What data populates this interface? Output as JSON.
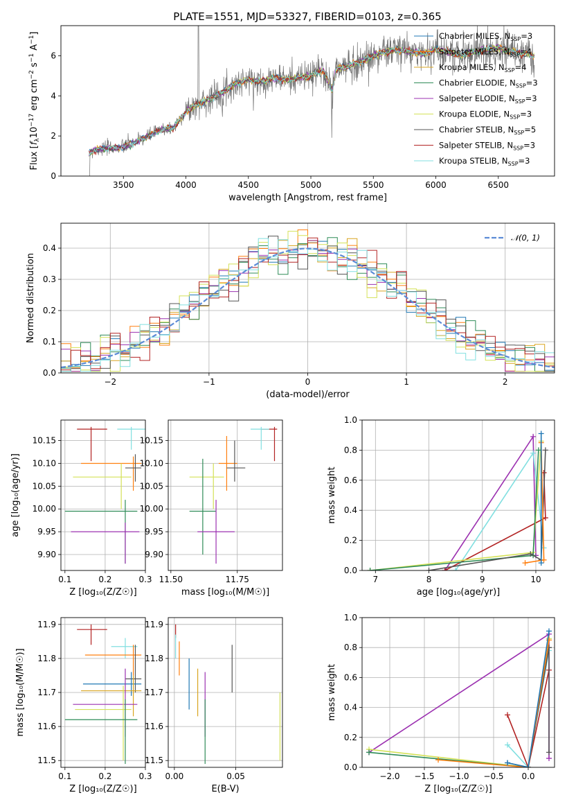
{
  "title": "PLATE=1551, MJD=53327, FIBERID=0103, z=0.365",
  "colors": {
    "chabrier_miles": "#1f77b4",
    "salpeter_miles": "#ff7f0e",
    "kroupa_miles": "#d9a520",
    "chabrier_elodie": "#2e8b57",
    "salpeter_elodie": "#9b30b0",
    "kroupa_elodie": "#d4e157",
    "chabrier_stelib": "#555555",
    "salpeter_stelib": "#b22222",
    "kroupa_stelib": "#80dfe0",
    "spectrum": "#707070",
    "gaussian": "#5b8bd6"
  },
  "chart_data": [
    {
      "type": "line",
      "title": "PLATE=1551, MJD=53327, FIBERID=0103, z=0.365",
      "xlabel": "wavelength [Angstrom, rest frame]",
      "ylabel_parts": [
        "Flux [",
        "f",
        "λ",
        "10",
        "−17",
        " erg cm",
        "−2",
        " s",
        "−1",
        " A",
        "−1",
        "]"
      ],
      "xlim": [
        3000,
        6950
      ],
      "ylim": [
        0,
        7.5
      ],
      "xticks": [
        3500,
        4000,
        4500,
        5000,
        5500,
        6000,
        6500
      ],
      "yticks": [
        0,
        2,
        4,
        6
      ],
      "spectrum_anchor_x": [
        3225,
        3260,
        3400,
        3500,
        3600,
        3700,
        3800,
        3900,
        4000,
        4100,
        4200,
        4300,
        4400,
        4500,
        4600,
        4700,
        4800,
        4900,
        5000,
        5100,
        5170,
        5200,
        5300,
        5400,
        5500,
        5600,
        5700,
        5800,
        5900,
        6000,
        6100,
        6200,
        6300,
        6400,
        6500,
        6600,
        6700,
        6790
      ],
      "spectrum_anchor_y": [
        1.1,
        1.3,
        1.4,
        1.45,
        1.7,
        2.0,
        2.3,
        2.4,
        3.2,
        3.6,
        3.9,
        4.2,
        4.6,
        4.8,
        4.7,
        4.9,
        4.8,
        4.9,
        5.0,
        5.3,
        4.3,
        5.3,
        5.5,
        5.7,
        6.0,
        6.2,
        6.3,
        6.2,
        6.1,
        6.3,
        6.2,
        6.0,
        6.2,
        6.3,
        6.4,
        6.2,
        6.1,
        6.0
      ],
      "series": [
        {
          "name": "Chabrier MILES, N",
          "sub": "SSP",
          "suffix": "=3",
          "color_key": "chabrier_miles"
        },
        {
          "name": "Salpeter MILES, N",
          "sub": "SSP",
          "suffix": "=4",
          "color_key": "salpeter_miles"
        },
        {
          "name": "Kroupa MILES, N",
          "sub": "SSP",
          "suffix": "=4",
          "color_key": "kroupa_miles"
        },
        {
          "name": "Chabrier ELODIE, N",
          "sub": "SSP",
          "suffix": "=3",
          "color_key": "chabrier_elodie"
        },
        {
          "name": "Salpeter ELODIE, N",
          "sub": "SSP",
          "suffix": "=3",
          "color_key": "salpeter_elodie"
        },
        {
          "name": "Kroupa ELODIE, N",
          "sub": "SSP",
          "suffix": "=3",
          "color_key": "kroupa_elodie"
        },
        {
          "name": "Chabrier STELIB, N",
          "sub": "SSP",
          "suffix": "=5",
          "color_key": "chabrier_stelib"
        },
        {
          "name": "Salpeter STELIB, N",
          "sub": "SSP",
          "suffix": "=3",
          "color_key": "salpeter_stelib"
        },
        {
          "name": "Kroupa STELIB, N",
          "sub": "SSP",
          "suffix": "=3",
          "color_key": "kroupa_stelib"
        }
      ],
      "legend_position": "upper right"
    },
    {
      "type": "line",
      "xlabel": "(data-model)/error",
      "ylabel": "Normed distribution",
      "xlim": [
        -2.5,
        2.5
      ],
      "ylim": [
        0,
        0.48
      ],
      "xticks": [
        -2,
        -1,
        0,
        1,
        2
      ],
      "yticks": [
        0.0,
        0.1,
        0.2,
        0.3,
        0.4
      ],
      "grid": true,
      "bin_width": 0.1,
      "gaussian_legend": "𝒩(0, 1)",
      "gaussian_legend_position": "upper right",
      "hist_series_color_keys": [
        "chabrier_miles",
        "salpeter_miles",
        "kroupa_miles",
        "chabrier_elodie",
        "salpeter_elodie",
        "kroupa_elodie",
        "chabrier_stelib",
        "salpeter_stelib",
        "kroupa_stelib"
      ]
    },
    {
      "type": "scatter",
      "xlabel": "Z [log₁₀(Z/Z☉)]",
      "ylabel": "age  [log₁₀(age/yr)]",
      "xlim": [
        0.09,
        0.3
      ],
      "ylim": [
        9.865,
        10.195
      ],
      "xticks": [
        0.1,
        0.2,
        0.3
      ],
      "yticks": [
        9.9,
        9.95,
        10.0,
        10.05,
        10.1,
        10.15
      ],
      "points": [
        {
          "c": "salpeter_stelib",
          "x": 0.165,
          "xe": [
            0.13,
            0.205
          ],
          "y": 10.175,
          "ye": [
            10.105,
            10.18
          ]
        },
        {
          "c": "kroupa_stelib",
          "x": 0.265,
          "xe": [
            0.23,
            0.3
          ],
          "y": 10.175,
          "ye": [
            10.13,
            10.18
          ]
        },
        {
          "c": "salpeter_miles",
          "x": 0.27,
          "xe": [
            0.14,
            0.29
          ],
          "y": 10.1,
          "ye": [
            10.04,
            10.115
          ]
        },
        {
          "c": "chabrier_stelib",
          "x": 0.275,
          "xe": [
            0.25,
            0.29
          ],
          "y": 10.09,
          "ye": [
            10.06,
            10.12
          ]
        },
        {
          "c": "kroupa_elodie",
          "x": 0.24,
          "xe": [
            0.12,
            0.265
          ],
          "y": 10.07,
          "ye": [
            10.0,
            10.1
          ]
        },
        {
          "c": "chabrier_elodie",
          "x": 0.25,
          "xe": [
            0.1,
            0.28
          ],
          "y": 9.995,
          "ye": [
            9.88,
            10.02
          ]
        },
        {
          "c": "salpeter_elodie",
          "x": 0.25,
          "xe": [
            0.115,
            0.285
          ],
          "y": 9.95,
          "ye": [
            9.88,
            9.97
          ]
        }
      ]
    },
    {
      "type": "scatter",
      "xlabel": "mass [log₁₀(M/M☉)]",
      "xlim": [
        11.49,
        11.92
      ],
      "ylim": [
        9.865,
        10.195
      ],
      "xticks": [
        11.5,
        11.75
      ],
      "xticklabels": [
        "11.50",
        "11.75"
      ],
      "yticks": [
        9.9,
        9.95,
        10.0,
        10.05,
        10.1,
        10.15
      ],
      "points": [
        {
          "c": "salpeter_stelib",
          "x": 11.89,
          "xe": [
            11.84,
            11.9
          ],
          "y": 10.175,
          "ye": [
            10.105,
            10.18
          ]
        },
        {
          "c": "kroupa_stelib",
          "x": 11.84,
          "xe": [
            11.8,
            11.87
          ],
          "y": 10.175,
          "ye": [
            10.13,
            10.18
          ]
        },
        {
          "c": "salpeter_miles",
          "x": 11.71,
          "xe": [
            11.68,
            11.75
          ],
          "y": 10.1,
          "ye": [
            10.04,
            10.16
          ]
        },
        {
          "c": "chabrier_stelib",
          "x": 11.74,
          "xe": [
            11.71,
            11.78
          ],
          "y": 10.09,
          "ye": [
            10.06,
            10.15
          ]
        },
        {
          "c": "kroupa_elodie",
          "x": 11.66,
          "xe": [
            11.57,
            11.7
          ],
          "y": 10.07,
          "ye": [
            10.0,
            10.1
          ]
        },
        {
          "c": "chabrier_elodie",
          "x": 11.62,
          "xe": [
            11.57,
            11.67
          ],
          "y": 9.995,
          "ye": [
            9.9,
            10.11
          ]
        },
        {
          "c": "salpeter_elodie",
          "x": 11.67,
          "xe": [
            11.6,
            11.74
          ],
          "y": 9.95,
          "ye": [
            9.88,
            10.02
          ]
        }
      ]
    },
    {
      "type": "line",
      "xlabel": "age  [log₁₀(age/yr)]",
      "ylabel": "mass weight",
      "xlim": [
        6.75,
        10.35
      ],
      "ylim": [
        0,
        1.0
      ],
      "xticks": [
        7,
        8,
        9,
        10
      ],
      "yticks": [
        0.0,
        0.2,
        0.4,
        0.6,
        0.8,
        1.0
      ],
      "series": [
        {
          "c": "salpeter_elodie",
          "x": [
            8.3,
            9.95,
            10.0
          ],
          "y": [
            0.0,
            0.89,
            0.1
          ]
        },
        {
          "c": "kroupa_stelib",
          "x": [
            8.5,
            9.95,
            10.15
          ],
          "y": [
            0.0,
            0.78,
            0.15
          ]
        },
        {
          "c": "salpeter_stelib",
          "x": [
            8.3,
            10.18,
            10.15
          ],
          "y": [
            0.0,
            0.35,
            0.65
          ]
        },
        {
          "c": "kroupa_elodie",
          "x": [
            6.9,
            9.95,
            10.1
          ],
          "y": [
            0.0,
            0.12,
            0.86
          ]
        },
        {
          "c": "chabrier_elodie",
          "x": [
            6.9,
            9.95,
            10.05
          ],
          "y": [
            0.0,
            0.1,
            0.8
          ]
        },
        {
          "c": "chabrier_stelib",
          "x": [
            8.0,
            9.9,
            10.1,
            10.18
          ],
          "y": [
            0.0,
            0.11,
            0.07,
            0.8
          ]
        },
        {
          "c": "salpeter_miles",
          "x": [
            9.8,
            10.15,
            10.1
          ],
          "y": [
            0.05,
            0.07,
            0.85
          ]
        },
        {
          "c": "chabrier_miles",
          "x": [
            10.1,
            10.1
          ],
          "y": [
            0.05,
            0.91
          ]
        }
      ]
    },
    {
      "type": "scatter",
      "xlabel": "Z [log₁₀(Z/Z☉)]",
      "ylabel": "mass [log₁₀(M/M☉)]",
      "xlim": [
        0.09,
        0.3
      ],
      "ylim": [
        11.48,
        11.92
      ],
      "xticks": [
        0.1,
        0.2,
        0.3
      ],
      "yticks": [
        11.5,
        11.6,
        11.7,
        11.8,
        11.9
      ],
      "points": [
        {
          "c": "salpeter_stelib",
          "x": 0.165,
          "xe": [
            0.13,
            0.205
          ],
          "y": 11.885,
          "ye": [
            11.84,
            11.9
          ]
        },
        {
          "c": "kroupa_stelib",
          "x": 0.25,
          "xe": [
            0.215,
            0.28
          ],
          "y": 11.835,
          "ye": [
            11.8,
            11.86
          ]
        },
        {
          "c": "salpeter_miles",
          "x": 0.27,
          "xe": [
            0.15,
            0.29
          ],
          "y": 11.81,
          "ye": [
            11.75,
            11.84
          ]
        },
        {
          "c": "chabrier_stelib",
          "x": 0.275,
          "xe": [
            0.25,
            0.29
          ],
          "y": 11.74,
          "ye": [
            11.7,
            11.84
          ]
        },
        {
          "c": "chabrier_miles",
          "x": 0.265,
          "xe": [
            0.145,
            0.29
          ],
          "y": 11.725,
          "ye": [
            11.69,
            11.76
          ]
        },
        {
          "c": "kroupa_miles",
          "x": 0.27,
          "xe": [
            0.14,
            0.29
          ],
          "y": 11.705,
          "ye": [
            11.63,
            11.75
          ]
        },
        {
          "c": "salpeter_elodie",
          "x": 0.25,
          "xe": [
            0.12,
            0.28
          ],
          "y": 11.665,
          "ye": [
            11.57,
            11.77
          ]
        },
        {
          "c": "kroupa_elodie",
          "x": 0.245,
          "xe": [
            0.125,
            0.265
          ],
          "y": 11.65,
          "ye": [
            11.5,
            11.72
          ]
        },
        {
          "c": "chabrier_elodie",
          "x": 0.25,
          "xe": [
            0.1,
            0.28
          ],
          "y": 11.62,
          "ye": [
            11.49,
            11.68
          ]
        }
      ]
    },
    {
      "type": "scatter",
      "xlabel": "E(B-V)",
      "xlim": [
        -0.005,
        0.088
      ],
      "ylim": [
        11.48,
        11.92
      ],
      "xticks": [
        0.0,
        0.05
      ],
      "xticklabels": [
        "0.00",
        "0.05"
      ],
      "yticks": [
        11.5,
        11.6,
        11.7,
        11.8,
        11.9
      ],
      "points": [
        {
          "c": "salpeter_stelib",
          "x": 0.001,
          "y": 11.885,
          "ye": [
            11.86,
            11.9
          ]
        },
        {
          "c": "kroupa_stelib",
          "x": 0.001,
          "y": 11.84,
          "ye": [
            11.8,
            11.87
          ]
        },
        {
          "c": "salpeter_miles",
          "x": 0.004,
          "y": 11.8,
          "ye": [
            11.75,
            11.85
          ]
        },
        {
          "c": "chabrier_miles",
          "x": 0.012,
          "y": 11.725,
          "ye": [
            11.65,
            11.8
          ]
        },
        {
          "c": "kroupa_miles",
          "x": 0.019,
          "y": 11.7,
          "ye": [
            11.63,
            11.77
          ]
        },
        {
          "c": "salpeter_elodie",
          "x": 0.025,
          "y": 11.665,
          "ye": [
            11.57,
            11.76
          ]
        },
        {
          "c": "chabrier_elodie",
          "x": 0.025,
          "y": 11.62,
          "ye": [
            11.49,
            11.68
          ]
        },
        {
          "c": "chabrier_stelib",
          "x": 0.047,
          "y": 11.77,
          "ye": [
            11.7,
            11.84
          ]
        },
        {
          "c": "kroupa_elodie",
          "x": 0.086,
          "y": 11.6,
          "ye": [
            11.5,
            11.7
          ]
        }
      ]
    },
    {
      "type": "line",
      "xlabel": "Z [log₁₀(Z/Z☉)]",
      "ylabel": "mass weight",
      "xlim": [
        -2.4,
        0.38
      ],
      "ylim": [
        0,
        1.0
      ],
      "xticks": [
        -2.0,
        -1.5,
        -1.0,
        -0.5,
        0.0
      ],
      "yticks": [
        0.0,
        0.2,
        0.4,
        0.6,
        0.8,
        1.0
      ],
      "series": [
        {
          "c": "salpeter_elodie",
          "x": [
            -2.3,
            0.3,
            0.3
          ],
          "y": [
            0.1,
            0.89,
            0.06
          ]
        },
        {
          "c": "kroupa_elodie",
          "x": [
            -2.3,
            0.0,
            0.3
          ],
          "y": [
            0.12,
            0.0,
            0.86
          ]
        },
        {
          "c": "chabrier_elodie",
          "x": [
            -2.3,
            0.0,
            0.3
          ],
          "y": [
            0.1,
            0.0,
            0.8
          ]
        },
        {
          "c": "kroupa_stelib",
          "x": [
            -0.3,
            0.0,
            0.3
          ],
          "y": [
            0.15,
            0.0,
            0.78
          ]
        },
        {
          "c": "salpeter_stelib",
          "x": [
            -0.3,
            0.0,
            0.3
          ],
          "y": [
            0.35,
            0.0,
            0.65
          ]
        },
        {
          "c": "chabrier_stelib",
          "x": [
            -0.3,
            0.0,
            0.3,
            0.3
          ],
          "y": [
            0.03,
            0.0,
            0.8,
            0.1
          ]
        },
        {
          "c": "salpeter_miles",
          "x": [
            -1.3,
            0.0,
            0.3
          ],
          "y": [
            0.05,
            0.0,
            0.85
          ]
        },
        {
          "c": "chabrier_miles",
          "x": [
            -0.3,
            0.0,
            0.3
          ],
          "y": [
            0.03,
            0.0,
            0.91
          ]
        }
      ]
    }
  ]
}
